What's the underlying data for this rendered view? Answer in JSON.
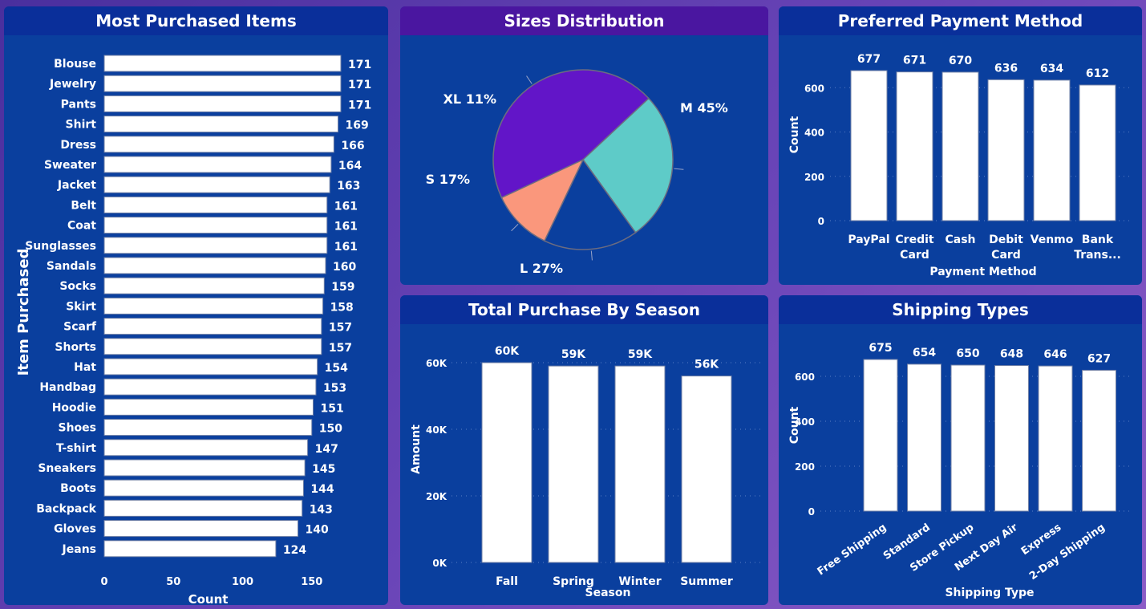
{
  "chart_data": [
    {
      "type": "bar",
      "orientation": "horizontal",
      "title": "Most Purchased Items",
      "xlabel": "Count",
      "ylabel": "Item Purchased",
      "xlim": [
        0,
        171
      ],
      "x_ticks": [
        "0",
        "50",
        "100",
        "150"
      ],
      "categories": [
        "Blouse",
        "Jewelry",
        "Pants",
        "Shirt",
        "Dress",
        "Sweater",
        "Jacket",
        "Belt",
        "Coat",
        "Sunglasses",
        "Sandals",
        "Socks",
        "Skirt",
        "Scarf",
        "Shorts",
        "Hat",
        "Handbag",
        "Hoodie",
        "Shoes",
        "T-shirt",
        "Sneakers",
        "Boots",
        "Backpack",
        "Gloves",
        "Jeans"
      ],
      "values": [
        171,
        171,
        171,
        169,
        166,
        164,
        163,
        161,
        161,
        161,
        160,
        159,
        158,
        157,
        157,
        154,
        153,
        151,
        150,
        147,
        145,
        144,
        143,
        140,
        124
      ]
    },
    {
      "type": "pie",
      "title": "Sizes Distribution",
      "labels": [
        "M",
        "L",
        "S",
        "XL"
      ],
      "values": [
        45,
        27,
        17,
        11
      ],
      "display_labels": [
        "M 45%",
        "L 27%",
        "S 17%",
        "XL 11%"
      ],
      "colors": [
        "#6215c8",
        "#5ecbc8",
        "#0a3f9e",
        "#fa977c"
      ]
    },
    {
      "type": "bar",
      "title": "Preferred Payment Method",
      "xlabel": "Payment Method",
      "ylabel": "Count",
      "ylim": [
        0,
        677
      ],
      "y_ticks": [
        "0",
        "200",
        "400",
        "600"
      ],
      "categories": [
        "PayPal",
        "Credit Card",
        "Cash",
        "Debit Card",
        "Venmo",
        "Bank Trans..."
      ],
      "category_lines": [
        [
          "PayPal"
        ],
        [
          "Credit",
          "Card"
        ],
        [
          "Cash"
        ],
        [
          "Debit",
          "Card"
        ],
        [
          "Venmo"
        ],
        [
          "Bank",
          "Trans..."
        ]
      ],
      "values": [
        677,
        671,
        670,
        636,
        634,
        612
      ]
    },
    {
      "type": "bar",
      "title": "Total Purchase By Season",
      "xlabel": "Season",
      "ylabel": "Amount",
      "ylim": [
        0,
        60000
      ],
      "y_ticks": [
        "0K",
        "20K",
        "40K",
        "60K"
      ],
      "categories": [
        "Fall",
        "Spring",
        "Winter",
        "Summer"
      ],
      "values": [
        60000,
        59000,
        59000,
        56000
      ],
      "value_labels": [
        "60K",
        "59K",
        "59K",
        "56K"
      ]
    },
    {
      "type": "bar",
      "title": "Shipping Types",
      "xlabel": "Shipping Type",
      "ylabel": "Count",
      "ylim": [
        0,
        675
      ],
      "y_ticks": [
        "0",
        "200",
        "400",
        "600"
      ],
      "categories": [
        "Free Shipping",
        "Standard",
        "Store Pickup",
        "Next Day Air",
        "Express",
        "2-Day Shipping"
      ],
      "values": [
        675,
        654,
        650,
        648,
        646,
        627
      ]
    }
  ],
  "colors": {
    "bar_fill": "#ffffff",
    "panel": "#0a3f9e",
    "title_bar": "#0a2f9a",
    "pie_title_bar": "#4a16a0"
  }
}
